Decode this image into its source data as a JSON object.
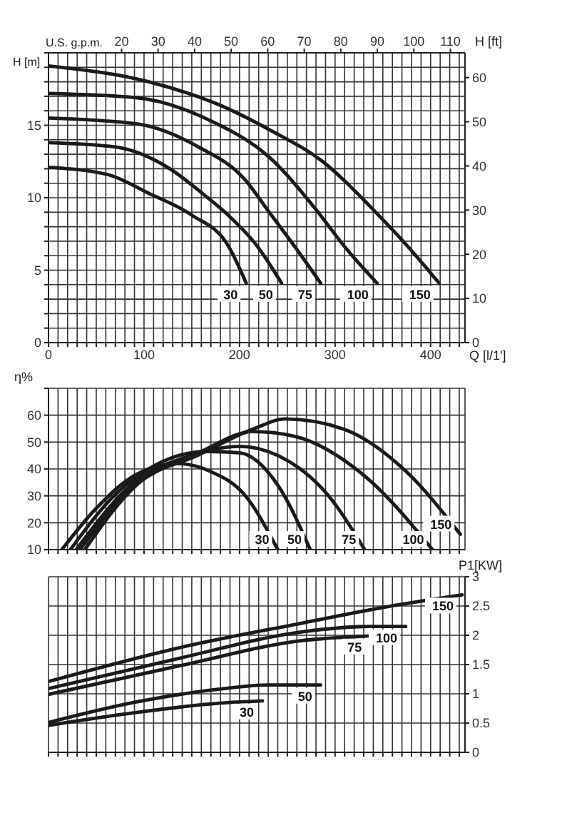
{
  "chart_data": [
    {
      "type": "line",
      "xlabel": "Q [l/1']",
      "ylabel": "H [m]",
      "y2label": "H [ft]",
      "x2label": "U.S. g.p.m.",
      "xlim": [
        0,
        436
      ],
      "xticks": [
        0,
        {
          "value": 10,
          "label": null
        },
        {
          "value": 20,
          "label": null
        },
        {
          "value": 30,
          "label": null
        },
        {
          "value": 40,
          "label": null
        },
        {
          "value": 50,
          "label": null
        },
        {
          "value": 60,
          "label": null
        },
        {
          "value": 70,
          "label": null
        },
        {
          "value": 80,
          "label": null
        },
        {
          "value": 90,
          "label": null
        },
        100,
        {
          "value": 110,
          "label": null
        },
        {
          "value": 120,
          "label": null
        },
        {
          "value": 130,
          "label": null
        },
        {
          "value": 140,
          "label": null
        },
        {
          "value": 150,
          "label": null
        },
        {
          "value": 160,
          "label": null
        },
        {
          "value": 170,
          "label": null
        },
        {
          "value": 180,
          "label": null
        },
        {
          "value": 190,
          "label": null
        },
        200,
        {
          "value": 210,
          "label": null
        },
        {
          "value": 220,
          "label": null
        },
        {
          "value": 230,
          "label": null
        },
        {
          "value": 240,
          "label": null
        },
        {
          "value": 250,
          "label": null
        },
        {
          "value": 260,
          "label": null
        },
        {
          "value": 270,
          "label": null
        },
        {
          "value": 280,
          "label": null
        },
        {
          "value": 290,
          "label": null
        },
        300,
        {
          "value": 310,
          "label": null
        },
        {
          "value": 320,
          "label": null
        },
        {
          "value": 330,
          "label": null
        },
        {
          "value": 340,
          "label": null
        },
        {
          "value": 350,
          "label": null
        },
        {
          "value": 360,
          "label": null
        },
        {
          "value": 370,
          "label": null
        },
        {
          "value": 380,
          "label": null
        },
        {
          "value": 390,
          "label": null
        },
        400,
        {
          "value": 410,
          "label": null
        },
        {
          "value": 420,
          "label": null
        },
        {
          "value": 430,
          "label": null
        }
      ],
      "x2lim": [
        0,
        114
      ],
      "x2ticks": [
        20,
        30,
        40,
        50,
        60,
        70,
        80,
        90,
        100,
        110
      ],
      "ylim": [
        0,
        20
      ],
      "yticks": [
        0,
        {
          "value": 1,
          "label": null
        },
        {
          "value": 2,
          "label": null
        },
        {
          "value": 3,
          "label": null
        },
        {
          "value": 4,
          "label": null
        },
        5,
        {
          "value": 6,
          "label": null
        },
        {
          "value": 7,
          "label": null
        },
        {
          "value": 8,
          "label": null
        },
        {
          "value": 9,
          "label": null
        },
        10,
        {
          "value": 11,
          "label": null
        },
        {
          "value": 12,
          "label": null
        },
        {
          "value": 13,
          "label": null
        },
        {
          "value": 14,
          "label": null
        },
        15,
        {
          "value": 16,
          "label": null
        },
        {
          "value": 17,
          "label": null
        },
        {
          "value": 18,
          "label": null
        },
        {
          "value": 19,
          "label": null
        },
        {
          "value": 20,
          "label": null
        }
      ],
      "y2lim": [
        0,
        65.6
      ],
      "y2ticks": [
        0,
        10,
        20,
        30,
        40,
        50,
        60
      ],
      "grid": true,
      "series": [
        {
          "name": "30",
          "color": "#1a1a1a",
          "x": [
            0,
            62,
            105,
            150,
            188,
            207
          ],
          "values": [
            12.1,
            11.6,
            10.3,
            8.8,
            6.7,
            4.1
          ]
        },
        {
          "name": "50",
          "color": "#1a1a1a",
          "x": [
            0,
            70,
            127,
            161,
            188,
            218,
            244
          ],
          "values": [
            13.8,
            13.5,
            12.0,
            10.3,
            8.8,
            6.7,
            4.1
          ]
        },
        {
          "name": "75",
          "color": "#1a1a1a",
          "x": [
            0,
            92,
            157,
            205,
            231,
            257,
            285
          ],
          "values": [
            15.5,
            15.1,
            13.5,
            11.3,
            9.0,
            6.7,
            4.1
          ]
        },
        {
          "name": "100",
          "color": "#1a1a1a",
          "x": [
            0,
            92,
            170,
            231,
            281,
            309,
            344
          ],
          "values": [
            17.2,
            16.9,
            15.3,
            12.8,
            9.1,
            6.7,
            4.1
          ]
        },
        {
          "name": "150",
          "color": "#1a1a1a",
          "x": [
            0,
            105,
            179,
            231,
            287,
            344,
            378,
            409
          ],
          "values": [
            19.1,
            18.0,
            16.4,
            14.7,
            12.5,
            8.9,
            6.5,
            4.1
          ]
        }
      ]
    },
    {
      "type": "line",
      "ylabel": "η%",
      "tick_labels": "y",
      "xlim": [
        0,
        436
      ],
      "xticks": [
        0,
        {
          "value": 10,
          "label": null
        },
        {
          "value": 20,
          "label": null
        },
        {
          "value": 30,
          "label": null
        },
        {
          "value": 40,
          "label": null
        },
        {
          "value": 50,
          "label": null
        },
        {
          "value": 60,
          "label": null
        },
        {
          "value": 70,
          "label": null
        },
        {
          "value": 80,
          "label": null
        },
        {
          "value": 90,
          "label": null
        },
        100,
        {
          "value": 110,
          "label": null
        },
        {
          "value": 120,
          "label": null
        },
        {
          "value": 130,
          "label": null
        },
        {
          "value": 140,
          "label": null
        },
        {
          "value": 150,
          "label": null
        },
        {
          "value": 160,
          "label": null
        },
        {
          "value": 170,
          "label": null
        },
        {
          "value": 180,
          "label": null
        },
        {
          "value": 190,
          "label": null
        },
        200,
        {
          "value": 210,
          "label": null
        },
        {
          "value": 220,
          "label": null
        },
        {
          "value": 230,
          "label": null
        },
        {
          "value": 240,
          "label": null
        },
        {
          "value": 250,
          "label": null
        },
        {
          "value": 260,
          "label": null
        },
        {
          "value": 270,
          "label": null
        },
        {
          "value": 280,
          "label": null
        },
        {
          "value": 290,
          "label": null
        },
        300,
        {
          "value": 310,
          "label": null
        },
        {
          "value": 320,
          "label": null
        },
        {
          "value": 330,
          "label": null
        },
        {
          "value": 340,
          "label": null
        },
        {
          "value": 350,
          "label": null
        },
        {
          "value": 360,
          "label": null
        },
        {
          "value": 370,
          "label": null
        },
        {
          "value": 380,
          "label": null
        },
        {
          "value": 390,
          "label": null
        },
        400,
        {
          "value": 410,
          "label": null
        },
        {
          "value": 420,
          "label": null
        },
        {
          "value": 430,
          "label": null
        }
      ],
      "ylim": [
        10,
        70
      ],
      "yticks": [
        10,
        20,
        30,
        40,
        50,
        60,
        {
          "value": 70,
          "label": null
        }
      ],
      "grid": true,
      "series": [
        {
          "name": "30",
          "color": "#1a1a1a",
          "x": [
            14,
            49,
            92,
            135,
            170,
            205,
            240
          ],
          "values": [
            10,
            25,
            38,
            42,
            39,
            30.5,
            10
          ]
        },
        {
          "name": "50",
          "color": "#1a1a1a",
          "x": [
            23,
            70,
            114,
            166,
            200,
            240,
            274
          ],
          "values": [
            10,
            30.5,
            41.8,
            46.5,
            46,
            34,
            10
          ]
        },
        {
          "name": "75",
          "color": "#1a1a1a",
          "x": [
            29,
            92,
            144,
            200,
            240,
            292,
            331
          ],
          "values": [
            10,
            35.7,
            44.4,
            48.4,
            45,
            30.5,
            10
          ]
        },
        {
          "name": "100",
          "color": "#1a1a1a",
          "x": [
            33,
            92,
            157,
            214,
            257,
            331,
            402
          ],
          "values": [
            10,
            34.8,
            46,
            53.9,
            52.2,
            37.4,
            10
          ]
        },
        {
          "name": "150",
          "color": "#1a1a1a",
          "x": [
            38,
            92,
            157,
            214,
            248,
            309,
            374,
            431
          ],
          "values": [
            10,
            34,
            45.2,
            54.8,
            58.6,
            54.8,
            39.2,
            15.7
          ]
        }
      ]
    },
    {
      "type": "line",
      "y2label": "P1[KW]",
      "tick_labels": "y",
      "xlim": [
        0,
        436
      ],
      "xticks": [
        0,
        {
          "value": 10,
          "label": null
        },
        {
          "value": 20,
          "label": null
        },
        {
          "value": 30,
          "label": null
        },
        {
          "value": 40,
          "label": null
        },
        {
          "value": 50,
          "label": null
        },
        {
          "value": 60,
          "label": null
        },
        {
          "value": 70,
          "label": null
        },
        {
          "value": 80,
          "label": null
        },
        {
          "value": 90,
          "label": null
        },
        100,
        {
          "value": 110,
          "label": null
        },
        {
          "value": 120,
          "label": null
        },
        {
          "value": 130,
          "label": null
        },
        {
          "value": 140,
          "label": null
        },
        {
          "value": 150,
          "label": null
        },
        {
          "value": 160,
          "label": null
        },
        {
          "value": 170,
          "label": null
        },
        {
          "value": 180,
          "label": null
        },
        {
          "value": 190,
          "label": null
        },
        200,
        {
          "value": 210,
          "label": null
        },
        {
          "value": 220,
          "label": null
        },
        {
          "value": 230,
          "label": null
        },
        {
          "value": 240,
          "label": null
        },
        {
          "value": 250,
          "label": null
        },
        {
          "value": 260,
          "label": null
        },
        {
          "value": 270,
          "label": null
        },
        {
          "value": 280,
          "label": null
        },
        {
          "value": 290,
          "label": null
        },
        300,
        {
          "value": 310,
          "label": null
        },
        {
          "value": 320,
          "label": null
        },
        {
          "value": 330,
          "label": null
        },
        {
          "value": 340,
          "label": null
        },
        {
          "value": 350,
          "label": null
        },
        {
          "value": 360,
          "label": null
        },
        {
          "value": 370,
          "label": null
        },
        {
          "value": 380,
          "label": null
        },
        {
          "value": 390,
          "label": null
        },
        400,
        {
          "value": 410,
          "label": null
        },
        {
          "value": 420,
          "label": null
        },
        {
          "value": 430,
          "label": null
        }
      ],
      "y2lim": [
        0,
        3
      ],
      "y2ticks": [
        0,
        0.5,
        1,
        1.5,
        2,
        2.5,
        3
      ],
      "grid": true,
      "series": [
        {
          "name": "30",
          "color": "#1a1a1a",
          "axis": "y2",
          "x": [
            0,
            92,
            179,
            224
          ],
          "values": [
            0.46,
            0.68,
            0.84,
            0.88
          ]
        },
        {
          "name": "50",
          "color": "#1a1a1a",
          "axis": "y2",
          "x": [
            0,
            92,
            179,
            231,
            285
          ],
          "values": [
            0.51,
            0.86,
            1.08,
            1.15,
            1.15
          ]
        },
        {
          "name": "75",
          "color": "#1a1a1a",
          "axis": "y2",
          "x": [
            0,
            135,
            266,
            337
          ],
          "values": [
            0.99,
            1.47,
            1.91,
            1.99
          ]
        },
        {
          "name": "100",
          "color": "#1a1a1a",
          "axis": "y2",
          "x": [
            0,
            135,
            266,
            335,
            374
          ],
          "values": [
            1.09,
            1.6,
            2.06,
            2.15,
            2.15
          ]
        },
        {
          "name": "150",
          "color": "#1a1a1a",
          "axis": "y2",
          "x": [
            0,
            135,
            266,
            352,
            433
          ],
          "values": [
            1.21,
            1.78,
            2.21,
            2.48,
            2.69
          ]
        }
      ]
    }
  ]
}
